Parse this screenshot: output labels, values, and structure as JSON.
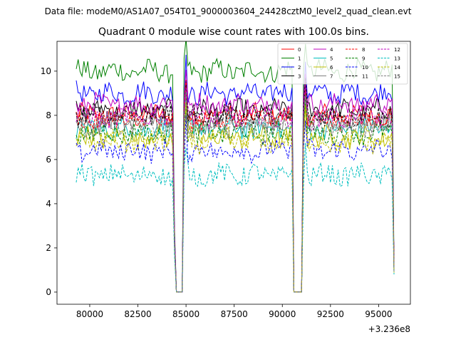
{
  "chart_data": {
    "type": "line",
    "suptitle": "Data file: modeM0/AS1A07_054T01_9000003604_24428cztM0_level2_quad_clean.evt",
    "title": "Quadrant 0 module wise count rates with 100.0s bins.",
    "xlabel": "",
    "ylabel": "",
    "x_offset_label": "+3.236e8",
    "xlim": [
      78300,
      96650
    ],
    "ylim": [
      -0.55,
      11.35
    ],
    "xticks": [
      80000,
      82500,
      85000,
      87500,
      90000,
      92500,
      95000
    ],
    "xtick_labels": [
      "80000",
      "82500",
      "85000",
      "87500",
      "90000",
      "92500",
      "95000"
    ],
    "yticks": [
      0,
      2,
      4,
      6,
      8,
      10
    ],
    "ytick_labels": [
      "0",
      "2",
      "4",
      "6",
      "8",
      "10"
    ],
    "x_range": [
      79300,
      95800
    ],
    "bin_seconds": 100,
    "gaps": [
      [
        84350,
        84900
      ],
      [
        90500,
        91100
      ]
    ],
    "legend_position": "upper right",
    "series": [
      {
        "name": "0",
        "color": "#ff0000",
        "dash": "solid",
        "level": 8.0
      },
      {
        "name": "1",
        "color": "#008000",
        "dash": "solid",
        "level": 10.0
      },
      {
        "name": "2",
        "color": "#0000ff",
        "dash": "solid",
        "level": 9.0
      },
      {
        "name": "3",
        "color": "#000000",
        "dash": "solid",
        "level": 8.2
      },
      {
        "name": "4",
        "color": "#bf00bf",
        "dash": "solid",
        "level": 8.5
      },
      {
        "name": "5",
        "color": "#00bfbf",
        "dash": "solid",
        "level": 7.4
      },
      {
        "name": "6",
        "color": "#bfbf00",
        "dash": "solid",
        "level": 7.0
      },
      {
        "name": "7",
        "color": "#808080",
        "dash": "solid",
        "level": 7.7
      },
      {
        "name": "8",
        "color": "#ff0000",
        "dash": "dashed",
        "level": 7.8
      },
      {
        "name": "9",
        "color": "#008000",
        "dash": "dashed",
        "level": 7.2
      },
      {
        "name": "10",
        "color": "#0000ff",
        "dash": "dashed",
        "level": 6.4
      },
      {
        "name": "11",
        "color": "#000000",
        "dash": "dashed",
        "level": 8.0
      },
      {
        "name": "12",
        "color": "#bf00bf",
        "dash": "dashed",
        "level": 7.9
      },
      {
        "name": "13",
        "color": "#00bfbf",
        "dash": "dashed",
        "level": 5.3
      },
      {
        "name": "14",
        "color": "#bfbf00",
        "dash": "dashed",
        "level": 6.8
      },
      {
        "name": "15",
        "color": "#808080",
        "dash": "dashed",
        "level": 7.5
      }
    ]
  }
}
